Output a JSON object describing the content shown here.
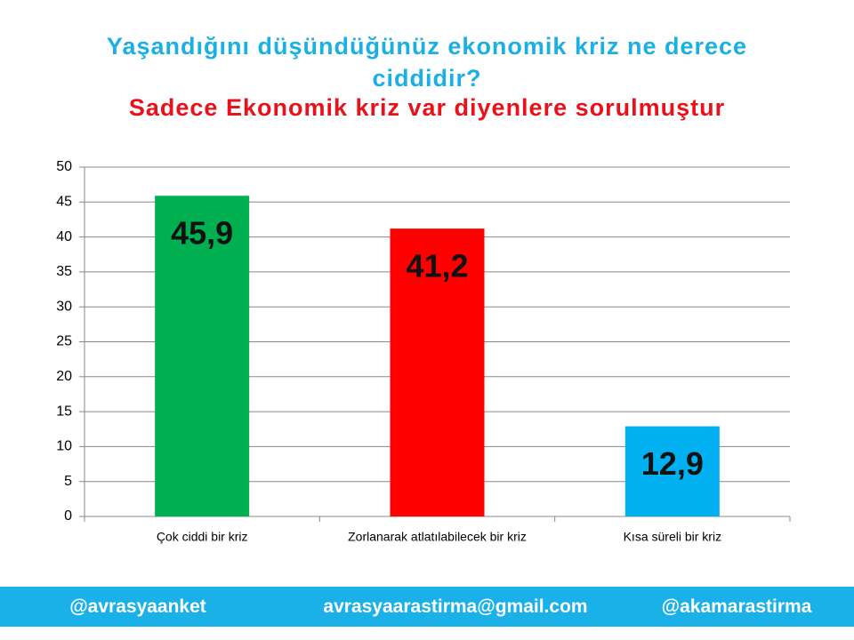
{
  "chart_data": {
    "type": "bar",
    "title": "Yaşandığını düşündüğünüz ekonomik kriz ne derece ciddidir?",
    "subtitle": "Sadece Ekonomik kriz var diyenlere sorulmuştur",
    "categories": [
      "Çok ciddi bir kriz",
      "Zorlanarak atlatılabilecek bir kriz",
      "Kısa süreli bir kriz"
    ],
    "values": [
      45.9,
      41.2,
      12.9
    ],
    "value_labels": [
      "45,9",
      "41,2",
      "12,9"
    ],
    "colors": [
      "#00b050",
      "#ff0000",
      "#00b0f0"
    ],
    "ylim": [
      0,
      50
    ],
    "yticks": [
      0,
      5,
      10,
      15,
      20,
      25,
      30,
      35,
      40,
      45,
      50
    ],
    "grid": true
  },
  "footer": {
    "left": "@avrasyaanket",
    "center": "avrasyaarastirma@gmail.com",
    "right": "@akamarastirma"
  }
}
